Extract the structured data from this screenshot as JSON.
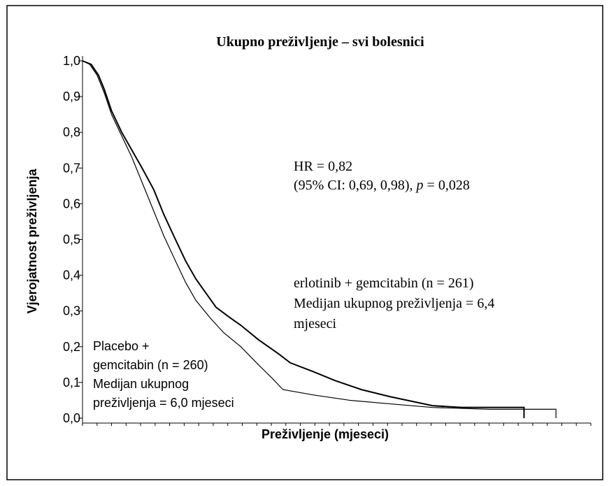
{
  "chart_data": {
    "type": "line",
    "title": "Ukupno preživljenje – svi bolesnici",
    "x_label": "Preživljenje (mjeseci)",
    "y_label": "Vjerojatnost preživljenja",
    "annotations": {
      "hr": "HR = 0,82",
      "ci_start": "(95% CI: 0,69, 0,98), ",
      "ci_p": "p",
      "ci_end": " = 0,028",
      "erlotinib": [
        "erlotinib + gemcitabin (n = 261)",
        "Medijan ukupnog preživljenja = 6,4",
        "mjeseci"
      ],
      "placebo": [
        "Placebo  +",
        "gemcitabin (n = 260)",
        "Medijan ukupnog",
        "preživljenja = 6,0 mjeseci"
      ]
    },
    "xlim": [
      0,
      35
    ],
    "xticks": [
      0,
      1,
      2,
      3,
      4,
      5,
      6,
      7,
      8,
      9,
      10,
      11,
      12,
      13,
      14,
      15,
      16,
      17,
      18,
      19,
      20,
      21,
      22,
      23,
      24,
      25,
      26,
      27,
      28,
      29,
      30,
      31,
      32,
      33,
      34,
      35
    ],
    "ylim": [
      0,
      1
    ],
    "yticks": [
      {
        "value": 0,
        "label": "0,0"
      },
      {
        "value": 0.1,
        "label": "0,1"
      },
      {
        "value": 0.2,
        "label": "0,2"
      },
      {
        "value": 0.3,
        "label": "0,3"
      },
      {
        "value": 0.4,
        "label": "0,4"
      },
      {
        "value": 0.5,
        "label": "0,5"
      },
      {
        "value": 0.6,
        "label": "0,6"
      },
      {
        "value": 0.7,
        "label": "0,7"
      },
      {
        "value": 0.8,
        "label": "0,8"
      },
      {
        "value": 0.9,
        "label": "0,9"
      },
      {
        "value": 1,
        "label": "1,0"
      }
    ],
    "series": [
      {
        "color": "#000000",
        "width": 2,
        "x": [
          0,
          0.6,
          1.1,
          1.5,
          2.0,
          2.7,
          3.4,
          4.1,
          4.9,
          5.6,
          6.4,
          7.1,
          7.8,
          8.5,
          9.2,
          10.2,
          10.9,
          12.1,
          13.5,
          14.3,
          15.9,
          17.4,
          19.2,
          21.2,
          24.1,
          26.1,
          28.0,
          30.4,
          30.4
        ],
        "values": [
          1.0,
          0.99,
          0.96,
          0.92,
          0.86,
          0.8,
          0.75,
          0.7,
          0.64,
          0.57,
          0.5,
          0.44,
          0.39,
          0.35,
          0.31,
          0.28,
          0.26,
          0.22,
          0.18,
          0.155,
          0.13,
          0.105,
          0.08,
          0.06,
          0.035,
          0.03,
          0.03,
          0.03,
          0
        ]
      },
      {
        "color": "#000000",
        "width": 1.2,
        "x": [
          0,
          0.5,
          1.0,
          1.5,
          2.0,
          2.7,
          3.4,
          4.1,
          4.9,
          5.6,
          6.4,
          7.1,
          7.8,
          8.8,
          9.7,
          10.9,
          12.1,
          13.1,
          13.8,
          15.9,
          18.4,
          21.2,
          24.1,
          28.0,
          32.6,
          32.6
        ],
        "values": [
          1.0,
          0.99,
          0.96,
          0.91,
          0.85,
          0.79,
          0.73,
          0.66,
          0.58,
          0.51,
          0.44,
          0.38,
          0.33,
          0.28,
          0.24,
          0.2,
          0.15,
          0.11,
          0.08,
          0.065,
          0.05,
          0.04,
          0.03,
          0.025,
          0.025,
          0
        ]
      }
    ]
  }
}
